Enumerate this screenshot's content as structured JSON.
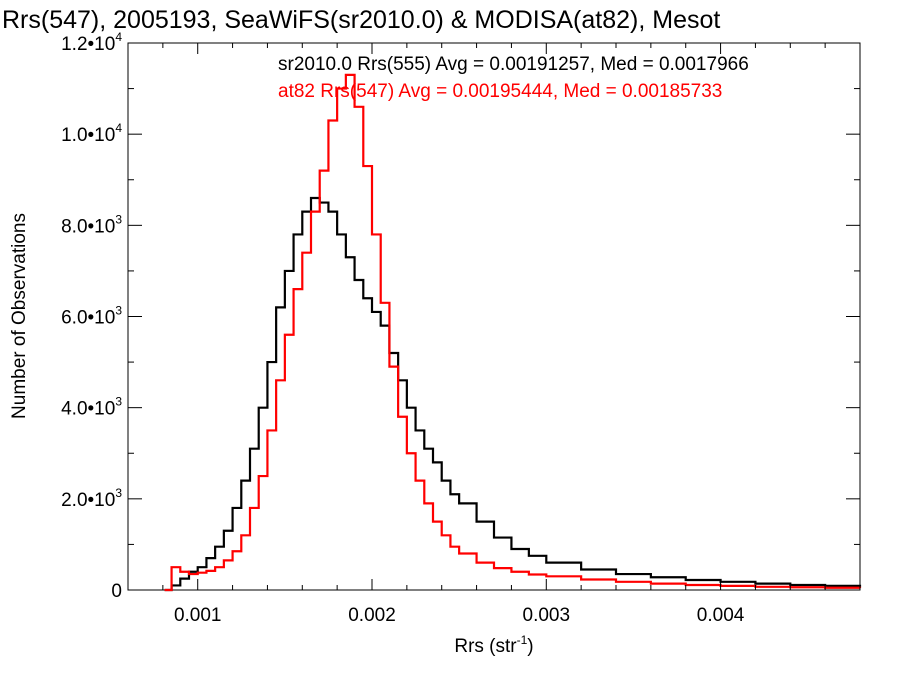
{
  "chart_data": {
    "type": "line",
    "title": "Rrs(547), 2005193, SeaWiFS(sr2010.0) & MODISA(at82), Mesot",
    "xlabel": "Rrs (str",
    "xlabel_sup": "-1",
    "xlabel_close": ")",
    "ylabel": "Number of Observations",
    "xlim": [
      0.0006,
      0.0048
    ],
    "ylim": [
      0,
      12000
    ],
    "x_ticks": [
      {
        "value": 0.001,
        "label": "0.001"
      },
      {
        "value": 0.002,
        "label": "0.002"
      },
      {
        "value": 0.003,
        "label": "0.003"
      },
      {
        "value": 0.004,
        "label": "0.004"
      }
    ],
    "y_ticks": [
      {
        "value": 0,
        "label": "0",
        "exp": ""
      },
      {
        "value": 2000,
        "label": "2.0•10",
        "exp": "3"
      },
      {
        "value": 4000,
        "label": "4.0•10",
        "exp": "3"
      },
      {
        "value": 6000,
        "label": "6.0•10",
        "exp": "3"
      },
      {
        "value": 8000,
        "label": "8.0•10",
        "exp": "3"
      },
      {
        "value": 10000,
        "label": "1.0•10",
        "exp": "4"
      },
      {
        "value": 12000,
        "label": "1.2•10",
        "exp": "4"
      }
    ],
    "grid": false,
    "legend_placement": "top-right",
    "annotations": [
      {
        "text": "sr2010.0 Rrs(555) Avg = 0.00191257, Med = 0.0017966",
        "color": "#000000"
      },
      {
        "text": "at82 Rrs(547) Avg = 0.00195444, Med = 0.00185733",
        "color": "#ff0000"
      }
    ],
    "series": [
      {
        "color": "#000000",
        "x": [
          0.00081,
          0.00085,
          0.0009,
          0.00095,
          0.001,
          0.00105,
          0.0011,
          0.00115,
          0.0012,
          0.00125,
          0.0013,
          0.00135,
          0.0014,
          0.00145,
          0.0015,
          0.00155,
          0.0016,
          0.00165,
          0.0017,
          0.00175,
          0.0018,
          0.00185,
          0.0019,
          0.00195,
          0.002,
          0.00205,
          0.0021,
          0.00215,
          0.0022,
          0.00225,
          0.0023,
          0.00235,
          0.0024,
          0.00245,
          0.0025,
          0.0026,
          0.0027,
          0.0028,
          0.0029,
          0.003,
          0.0032,
          0.0034,
          0.0036,
          0.0038,
          0.004,
          0.0042,
          0.0044,
          0.0046,
          0.0048
        ],
        "y": [
          0,
          100,
          250,
          400,
          500,
          700,
          950,
          1300,
          1800,
          2400,
          3100,
          4000,
          5000,
          6200,
          7000,
          7800,
          8300,
          8600,
          8500,
          8300,
          7800,
          7300,
          6800,
          6400,
          6100,
          5800,
          5200,
          4600,
          4000,
          3500,
          3100,
          2800,
          2400,
          2100,
          1900,
          1500,
          1150,
          900,
          750,
          600,
          450,
          350,
          280,
          220,
          180,
          140,
          110,
          90,
          70
        ]
      },
      {
        "color": "#ff0000",
        "x": [
          0.00081,
          0.00085,
          0.0009,
          0.00095,
          0.001,
          0.00105,
          0.0011,
          0.00115,
          0.0012,
          0.00125,
          0.0013,
          0.00135,
          0.0014,
          0.00145,
          0.0015,
          0.00155,
          0.0016,
          0.00165,
          0.0017,
          0.00175,
          0.0018,
          0.00185,
          0.0019,
          0.00195,
          0.002,
          0.00205,
          0.0021,
          0.00215,
          0.0022,
          0.00225,
          0.0023,
          0.00235,
          0.0024,
          0.00245,
          0.0025,
          0.0026,
          0.0027,
          0.0028,
          0.0029,
          0.003,
          0.0032,
          0.0034,
          0.0036,
          0.0038,
          0.004,
          0.0042,
          0.0044,
          0.0046,
          0.0048
        ],
        "y": [
          0,
          500,
          400,
          350,
          380,
          420,
          500,
          650,
          850,
          1200,
          1800,
          2500,
          3500,
          4600,
          5600,
          6600,
          7400,
          8300,
          9200,
          10300,
          11000,
          11300,
          10600,
          9300,
          7800,
          6300,
          4900,
          3800,
          3000,
          2400,
          1900,
          1500,
          1200,
          950,
          800,
          600,
          480,
          400,
          340,
          300,
          230,
          180,
          140,
          110,
          90,
          70,
          60,
          50,
          40
        ]
      }
    ]
  }
}
